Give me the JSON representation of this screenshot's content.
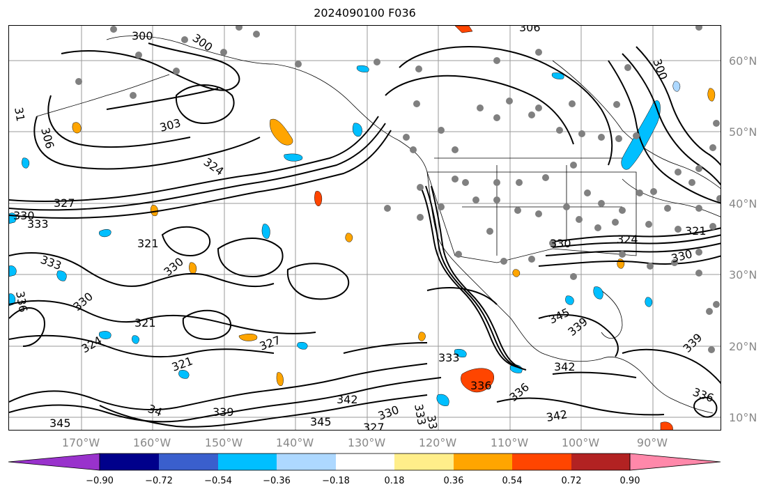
{
  "title": "2024090100 F036",
  "map": {
    "lat_labels": [
      "60°N",
      "50°N",
      "40°N",
      "30°N",
      "20°N",
      "10°N"
    ],
    "lon_labels": [
      "170°W",
      "160°W",
      "150°W",
      "140°W",
      "130°W",
      "120°W",
      "110°W",
      "100°W",
      "90°W"
    ],
    "contour_labels": [
      {
        "text": "300"
      },
      {
        "text": "300"
      },
      {
        "text": "306"
      },
      {
        "text": "300"
      },
      {
        "text": "303"
      },
      {
        "text": "306"
      },
      {
        "text": "31"
      },
      {
        "text": "324"
      },
      {
        "text": "330"
      },
      {
        "text": "333"
      },
      {
        "text": "321"
      },
      {
        "text": "333"
      },
      {
        "text": "330"
      },
      {
        "text": "330"
      },
      {
        "text": "321"
      },
      {
        "text": "324"
      },
      {
        "text": "327"
      },
      {
        "text": "321"
      },
      {
        "text": "333"
      },
      {
        "text": "336"
      },
      {
        "text": "342"
      },
      {
        "text": "345"
      },
      {
        "text": "339"
      },
      {
        "text": "34"
      },
      {
        "text": "345"
      },
      {
        "text": "327"
      },
      {
        "text": "330"
      },
      {
        "text": "333"
      },
      {
        "text": "33"
      },
      {
        "text": "336"
      },
      {
        "text": "342"
      },
      {
        "text": "330"
      },
      {
        "text": "324"
      },
      {
        "text": "321"
      },
      {
        "text": "330"
      },
      {
        "text": "345"
      },
      {
        "text": "339"
      },
      {
        "text": "339"
      },
      {
        "text": "336"
      },
      {
        "text": "342"
      },
      {
        "text": "336"
      },
      {
        "text": "327"
      }
    ],
    "colors": {
      "contour": "#000000",
      "grid": "#9a9a9a",
      "coast": "#000000",
      "dots": "#808080",
      "pos_fill": "#ffa500",
      "pos_strong": "#ff4500",
      "neg_fill": "#00bfff",
      "neg_light": "#add8ff"
    }
  },
  "colorbar": {
    "colors": [
      "#9932cc",
      "#00008b",
      "#3a5fcd",
      "#00bfff",
      "#add8ff",
      "#ffffff",
      "#ffee8a",
      "#ffa500",
      "#ff4500",
      "#b22222",
      "#ff88aa"
    ],
    "ticks": [
      "−0.90",
      "−0.72",
      "−0.54",
      "−0.36",
      "−0.18",
      "0.18",
      "0.36",
      "0.54",
      "0.72",
      "0.90"
    ]
  }
}
